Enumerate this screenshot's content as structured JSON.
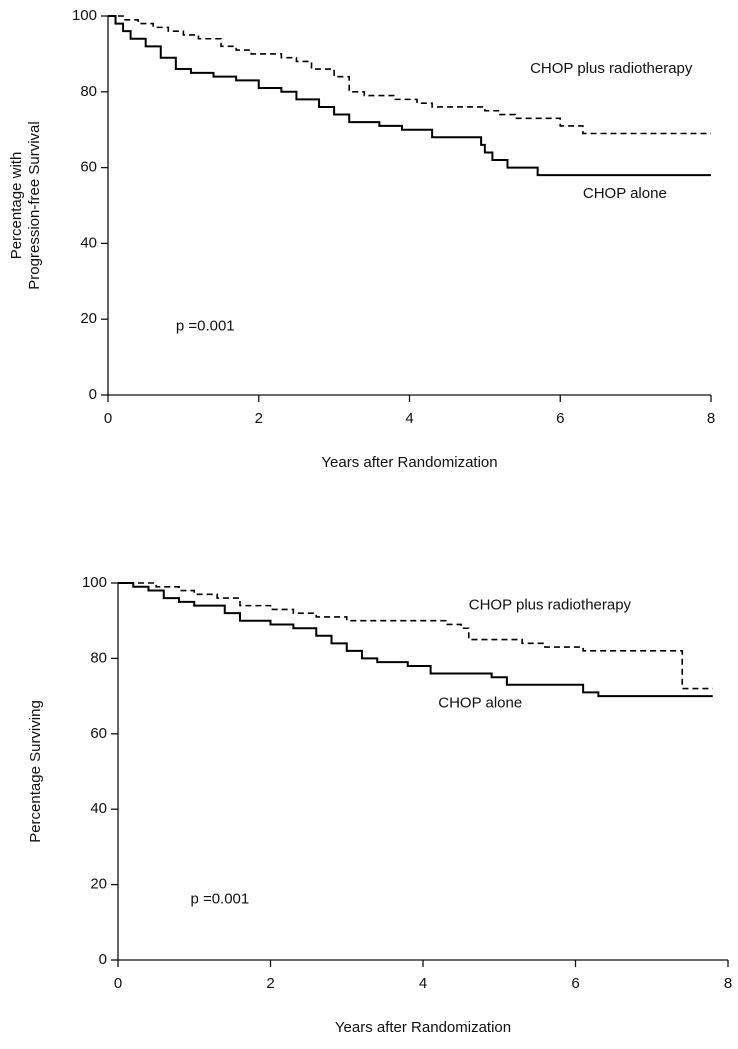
{
  "chart_data": [
    {
      "type": "step",
      "ylabel": [
        "Percentage with",
        "Progression-free Survival"
      ],
      "xlabel": "Years after Randomization",
      "annotation": "p =0.001",
      "xlim": [
        0,
        8
      ],
      "xticks": [
        0,
        2,
        4,
        6,
        8
      ],
      "ylim": [
        0,
        100
      ],
      "yticks": [
        0,
        20,
        40,
        60,
        80,
        100
      ],
      "series": [
        {
          "name": "CHOP plus radiotherapy",
          "color": "#000000",
          "dash": "dashed",
          "x": [
            0,
            0.2,
            0.4,
            0.6,
            0.8,
            1.0,
            1.2,
            1.5,
            1.7,
            1.9,
            2.3,
            2.5,
            2.7,
            3.0,
            3.2,
            3.4,
            3.8,
            4.1,
            4.3,
            5.0,
            5.2,
            5.4,
            6.0,
            6.3,
            8.0
          ],
          "values": [
            100,
            99,
            98,
            97,
            96,
            95,
            94,
            92,
            91,
            90,
            89,
            88,
            86,
            84,
            80,
            79,
            78,
            77,
            76,
            75,
            74,
            73,
            71,
            69,
            69
          ]
        },
        {
          "name": "CHOP alone",
          "color": "#000000",
          "dash": "solid",
          "x": [
            0,
            0.1,
            0.2,
            0.3,
            0.5,
            0.7,
            0.9,
            1.1,
            1.4,
            1.7,
            2.0,
            2.3,
            2.5,
            2.8,
            3.0,
            3.2,
            3.6,
            3.9,
            4.3,
            4.95,
            5.0,
            5.1,
            5.3,
            5.7,
            8.0
          ],
          "values": [
            100,
            98,
            96,
            94,
            92,
            89,
            86,
            85,
            84,
            83,
            81,
            80,
            78,
            76,
            74,
            72,
            71,
            70,
            68,
            66,
            64,
            62,
            60,
            58,
            58
          ]
        }
      ]
    },
    {
      "type": "step",
      "ylabel": [
        "Percentage Surviving"
      ],
      "xlabel": "Years after Randomization",
      "annotation": "p =0.001",
      "xlim": [
        0,
        8
      ],
      "xticks": [
        0,
        2,
        4,
        6,
        8
      ],
      "ylim": [
        0,
        100
      ],
      "yticks": [
        0,
        20,
        40,
        60,
        80,
        100
      ],
      "series": [
        {
          "name": "CHOP plus radiotherapy",
          "color": "#000000",
          "dash": "dashed",
          "x": [
            0,
            0.5,
            0.8,
            1.0,
            1.3,
            1.6,
            2.0,
            2.3,
            2.6,
            3.0,
            4.3,
            4.5,
            4.6,
            5.3,
            5.6,
            6.1,
            7.4,
            7.8
          ],
          "values": [
            100,
            99,
            98,
            97,
            96,
            94,
            93,
            92,
            91,
            90,
            89,
            88,
            85,
            84,
            83,
            82,
            72,
            72
          ]
        },
        {
          "name": "CHOP alone",
          "color": "#000000",
          "dash": "solid",
          "x": [
            0,
            0.2,
            0.4,
            0.6,
            0.8,
            1.0,
            1.4,
            1.6,
            2.0,
            2.3,
            2.6,
            2.8,
            3.0,
            3.2,
            3.4,
            3.8,
            4.1,
            4.9,
            5.1,
            6.1,
            6.3,
            7.8
          ],
          "values": [
            100,
            99,
            98,
            96,
            95,
            94,
            92,
            90,
            89,
            88,
            86,
            84,
            82,
            80,
            79,
            78,
            76,
            75,
            73,
            71,
            70,
            70
          ]
        }
      ]
    }
  ]
}
